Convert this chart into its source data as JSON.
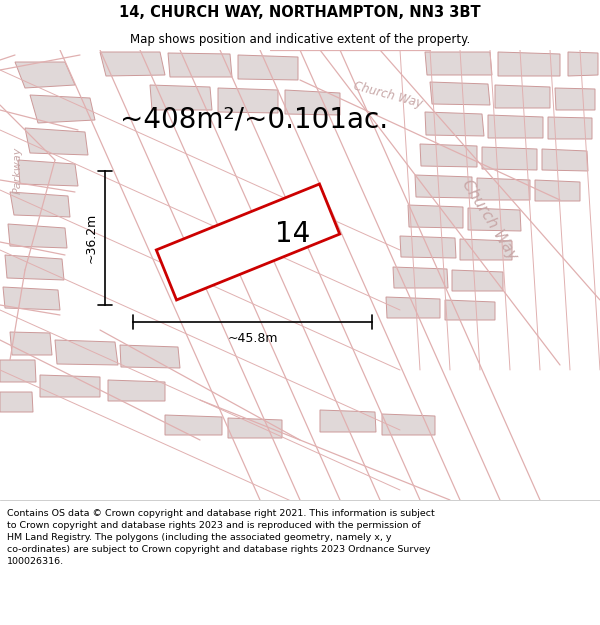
{
  "title": "14, CHURCH WAY, NORTHAMPTON, NN3 3BT",
  "subtitle": "Map shows position and indicative extent of the property.",
  "footer_text": "Contains OS data © Crown copyright and database right 2021. This information is subject to Crown copyright and database rights 2023 and is reproduced with the permission of HM Land Registry. The polygons (including the associated geometry, namely x, y co-ordinates) are subject to Crown copyright and database rights 2023 Ordnance Survey 100026316.",
  "area_label": "~408m²/~0.101ac.",
  "width_label": "~45.8m",
  "height_label": "~36.2m",
  "property_number": "14",
  "map_bg": "#f2eded",
  "road_color": "#ffffff",
  "building_fill": "#e0d8d8",
  "building_stroke": "#cc9999",
  "plot_color": "#cc0000",
  "street_label_color": "#c8a8a8",
  "title_fontsize": 10.5,
  "subtitle_fontsize": 8.5,
  "footer_fontsize": 6.8,
  "area_fontsize": 20,
  "dim_fontsize": 9,
  "number_fontsize": 20,
  "street_fontsize": 8.5,
  "parkway_fontsize": 8,
  "title_color": "#000000",
  "subtitle_color": "#000000"
}
